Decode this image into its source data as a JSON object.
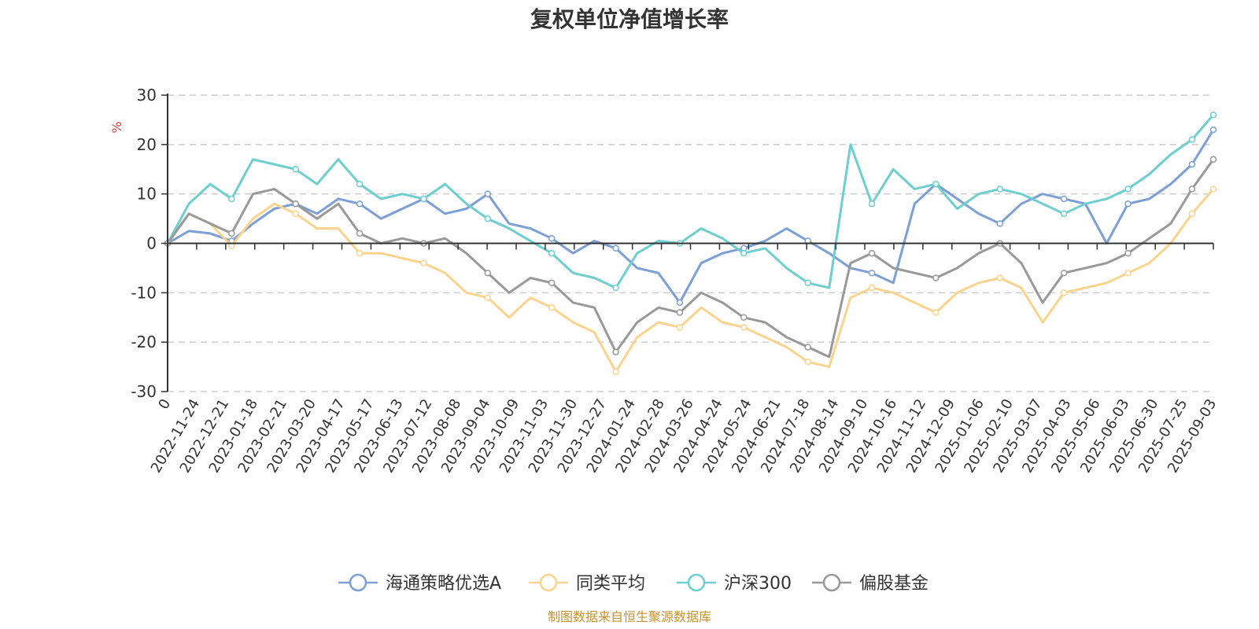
{
  "chart_data": {
    "type": "line",
    "title": "复权单位净值增长率",
    "ylabel": "%",
    "ylim": [
      -30,
      30
    ],
    "yticks": [
      -30,
      -20,
      -10,
      0,
      10,
      20,
      30
    ],
    "grid": true,
    "legend_position": "bottom",
    "source": "制图数据来自恒生聚源数据库",
    "x_ticks": [
      "0",
      "2022-11-24",
      "2022-12-21",
      "2023-01-18",
      "2023-02-21",
      "2023-03-20",
      "2023-04-17",
      "2023-05-17",
      "2023-06-13",
      "2023-07-12",
      "2023-08-08",
      "2023-09-04",
      "2023-10-09",
      "2023-11-03",
      "2023-11-30",
      "2023-12-27",
      "2024-01-24",
      "2024-02-28",
      "2024-03-26",
      "2024-04-24",
      "2024-05-24",
      "2024-06-21",
      "2024-07-18",
      "2024-08-14",
      "2024-09-10",
      "2024-10-16",
      "2024-11-12",
      "2024-12-09",
      "2025-01-06",
      "2025-02-10",
      "2025-03-07",
      "2025-04-03",
      "2025-05-06",
      "2025-06-03",
      "2025-06-30",
      "2025-07-25",
      "2025-09-03"
    ],
    "series": [
      {
        "name": "海通策略优选A",
        "color": "#7b9fd6",
        "values": [
          0,
          2.5,
          2,
          0.5,
          4,
          7,
          8,
          6,
          9,
          8,
          5,
          7,
          9,
          6,
          7,
          10,
          4,
          3,
          1,
          -2,
          0.5,
          -1,
          -5,
          -6,
          -12,
          -4,
          -2,
          -1,
          0.5,
          3,
          0.5,
          -2,
          -5,
          -6,
          -8,
          8,
          12,
          9,
          6,
          4,
          8,
          10,
          9,
          8,
          0,
          8,
          9,
          12,
          16,
          23
        ]
      },
      {
        "name": "同类平均",
        "color": "#fbd38d",
        "values": [
          0,
          6,
          4,
          -0.5,
          5,
          8,
          6,
          3,
          3,
          -2,
          -2,
          -3,
          -4,
          -6,
          -10,
          -11,
          -15,
          -11,
          -13,
          -16,
          -18,
          -26,
          -19,
          -16,
          -17,
          -13,
          -16,
          -17,
          -19,
          -21,
          -24,
          -25,
          -11,
          -9,
          -10,
          -12,
          -14,
          -10,
          -8,
          -7,
          -9,
          -16,
          -10,
          -9,
          -8,
          -6,
          -4,
          0,
          6,
          11
        ]
      },
      {
        "name": "沪深300",
        "color": "#6dcfcf",
        "values": [
          0,
          8,
          12,
          9,
          17,
          16,
          15,
          12,
          17,
          12,
          9,
          10,
          9,
          12,
          8,
          5,
          3,
          0.5,
          -2,
          -6,
          -7,
          -9,
          -2,
          0.5,
          0,
          3,
          1,
          -2,
          -1,
          -5,
          -8,
          -9,
          20,
          8,
          15,
          11,
          12,
          7,
          10,
          11,
          10,
          8,
          6,
          8,
          9,
          11,
          14,
          18,
          21,
          26
        ]
      },
      {
        "name": "偏股基金",
        "color": "#999999",
        "values": [
          0,
          6,
          4,
          2,
          10,
          11,
          8,
          5,
          8,
          2,
          0,
          1,
          0,
          1,
          -2,
          -6,
          -10,
          -7,
          -8,
          -12,
          -13,
          -22,
          -16,
          -13,
          -14,
          -10,
          -12,
          -15,
          -16,
          -19,
          -21,
          -23,
          -4,
          -2,
          -5,
          -6,
          -7,
          -5,
          -2,
          0,
          -4,
          -12,
          -6,
          -5,
          -4,
          -2,
          1,
          4,
          11,
          17
        ]
      }
    ]
  }
}
